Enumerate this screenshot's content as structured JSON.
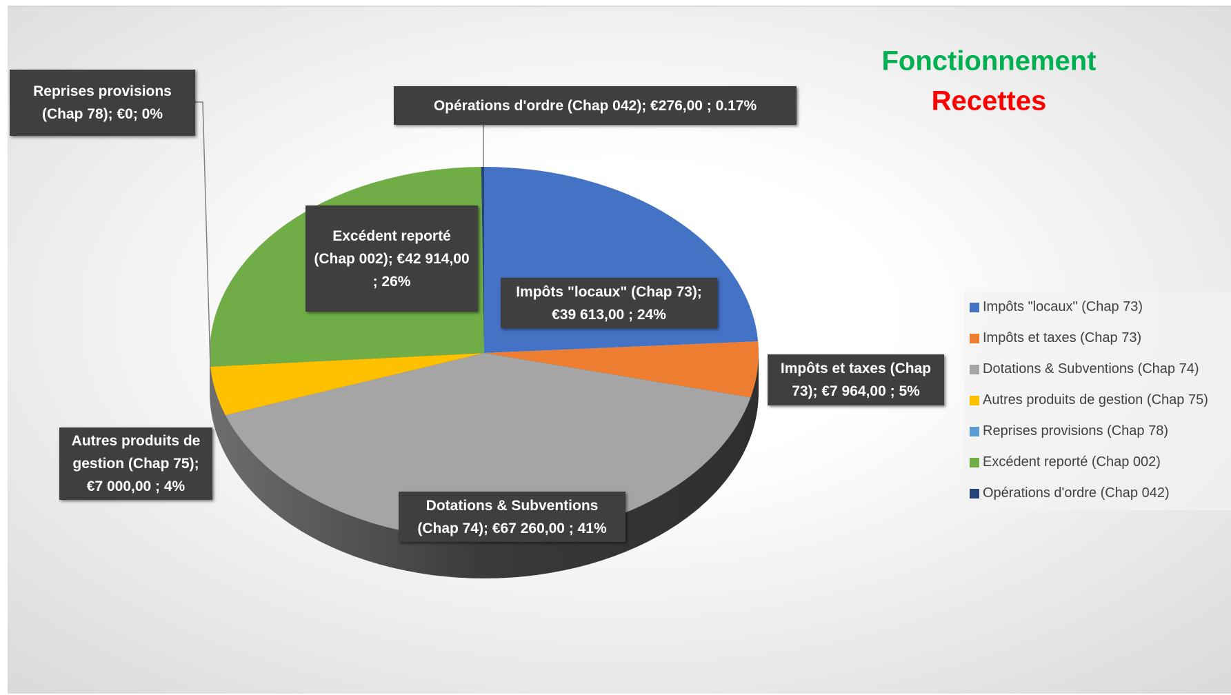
{
  "chart_data": {
    "type": "pie",
    "title": "Fonctionnement",
    "subtitle": "Recettes",
    "categories": [
      "Impôts \"locaux\" (Chap 73)",
      "Impôts et taxes (Chap 73)",
      "Dotations & Subventions (Chap 74)",
      "Autres produits de gestion (Chap 75)",
      "Reprises provisions (Chap 78)",
      "Excédent reporté (Chap 002)",
      "Opérations d'ordre (Chap 042)"
    ],
    "values": [
      39613,
      7964,
      67260,
      7000,
      0,
      42914,
      276
    ],
    "value_labels": [
      "Impôts \"locaux\" (Chap 73); €39 613,00 ; 24%",
      "Impôts et taxes (Chap 73);  €7 964,00 ; 5%",
      "Dotations & Subventions (Chap 74);  €67 260,00 ; 41%",
      "Autres produits de gestion (Chap 75); €7 000,00 ; 4%",
      "Reprises provisions (Chap 78); €0; 0%",
      "Excédent reporté (Chap 002); €42 914,00 ; 26%",
      "Opérations d'ordre (Chap 042);  €276,00 ; 0.17%"
    ],
    "colors": [
      "#4472c4",
      "#ed7d31",
      "#a5a5a5",
      "#ffc000",
      "#5b9bd5",
      "#70ad47",
      "#264478"
    ],
    "legend": "right"
  }
}
